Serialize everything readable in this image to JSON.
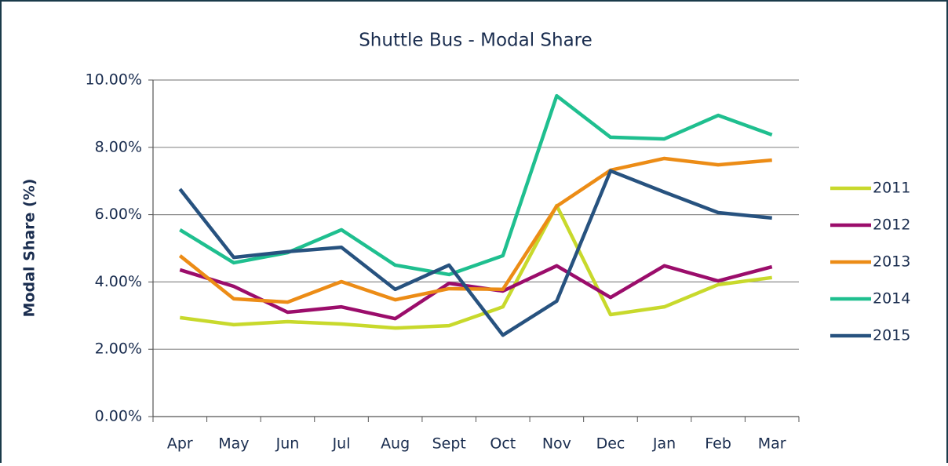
{
  "chart_data": {
    "type": "line",
    "title": "Shuttle Bus - Modal Share",
    "y_label": "Modal Share (%)",
    "categories": [
      "Apr",
      "May",
      "Jun",
      "Jul",
      "Aug",
      "Sept",
      "Oct",
      "Nov",
      "Dec",
      "Jan",
      "Feb",
      "Mar"
    ],
    "ylim": [
      0,
      10
    ],
    "yticks": [
      {
        "value": 0,
        "label": "0.00%"
      },
      {
        "value": 2,
        "label": "2.00%"
      },
      {
        "value": 4,
        "label": "4.00%"
      },
      {
        "value": 6,
        "label": "6.00%"
      },
      {
        "value": 8,
        "label": "8.00%"
      },
      {
        "value": 10,
        "label": "10.00%"
      }
    ],
    "grid": true,
    "legend": "right",
    "series": [
      {
        "name": "2011",
        "color": "#c8d92c",
        "values": [
          2.94,
          2.73,
          2.82,
          2.75,
          2.63,
          2.7,
          3.26,
          6.27,
          3.03,
          3.26,
          3.92,
          4.13
        ]
      },
      {
        "name": "2012",
        "color": "#9b0d6b",
        "values": [
          4.36,
          3.87,
          3.1,
          3.26,
          2.91,
          3.96,
          3.73,
          4.48,
          3.54,
          4.48,
          4.03,
          4.45
        ]
      },
      {
        "name": "2013",
        "color": "#ec8c16",
        "values": [
          4.78,
          3.5,
          3.4,
          4.01,
          3.47,
          3.8,
          3.78,
          6.25,
          7.32,
          7.67,
          7.48,
          7.62
        ]
      },
      {
        "name": "2014",
        "color": "#1fbf8f",
        "values": [
          5.55,
          4.57,
          4.87,
          5.55,
          4.5,
          4.22,
          4.78,
          9.53,
          8.3,
          8.25,
          8.95,
          8.37
        ]
      },
      {
        "name": "2015",
        "color": "#27527f",
        "values": [
          6.76,
          4.73,
          4.9,
          5.03,
          3.78,
          4.5,
          2.42,
          3.43,
          7.3,
          6.67,
          6.06,
          5.9
        ]
      }
    ]
  }
}
